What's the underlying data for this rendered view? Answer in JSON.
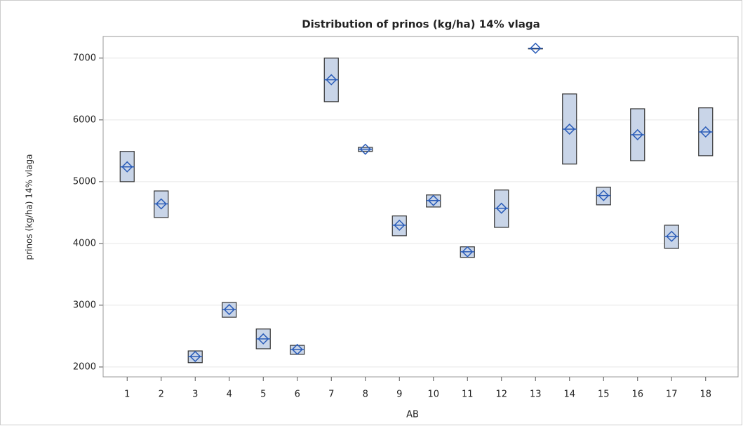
{
  "chart_data": {
    "type": "box",
    "title": "Distribution of prinos (kg/ha) 14% vlaga",
    "xlabel": "AB",
    "ylabel": "prinos (kg/ha) 14% vlaga",
    "categories": [
      "1",
      "2",
      "3",
      "4",
      "5",
      "6",
      "7",
      "8",
      "9",
      "10",
      "11",
      "12",
      "13",
      "14",
      "15",
      "16",
      "17",
      "18"
    ],
    "q3": [
      5490,
      4850,
      2260,
      3045,
      2615,
      2350,
      7000,
      5555,
      4445,
      4785,
      3945,
      4865,
      7160,
      6420,
      4910,
      6180,
      4295,
      6195
    ],
    "q1": [
      5000,
      4420,
      2070,
      2805,
      2295,
      2205,
      6295,
      5490,
      4125,
      4590,
      3775,
      4260,
      7160,
      5285,
      4625,
      5340,
      3920,
      5420
    ],
    "mean": [
      5240,
      4640,
      2170,
      2930,
      2455,
      2285,
      6650,
      5525,
      4295,
      4695,
      3865,
      4570,
      7160,
      5850,
      4775,
      5760,
      4115,
      5805
    ],
    "box_color": "#c9d5e8",
    "mean_color": "#2a5cb8",
    "ylim": [
      1840,
      7350
    ],
    "yticks": [
      2000,
      3000,
      4000,
      5000,
      6000,
      7000
    ],
    "grid": true
  }
}
